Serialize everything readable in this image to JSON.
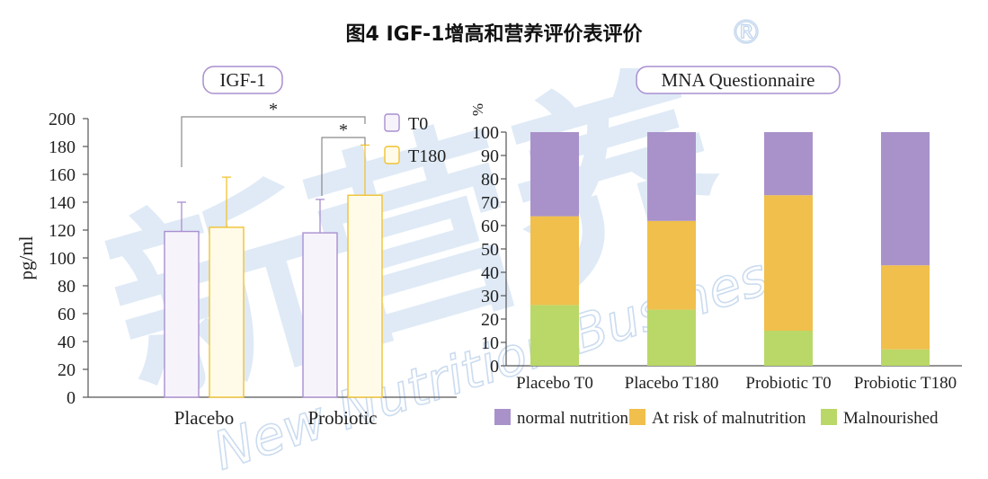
{
  "figure_title": "图4 IGF-1增高和营养评价表评价",
  "watermark": {
    "chinese": "新营养",
    "english": "New Nutrition Business",
    "mark": "®"
  },
  "colors": {
    "t0_stroke": "#a98fd0",
    "t0_fill": "#f7f3fb",
    "t180_stroke": "#f1c232",
    "t180_fill": "#fffbe8",
    "normal": "#a992c9",
    "risk": "#f0bf4c",
    "malnourished": "#b9d867",
    "axis": "#555555",
    "watermark": "#c5d8ee"
  },
  "chart_data": [
    {
      "type": "bar",
      "title": "IGF-1",
      "ylabel": "pg/ml",
      "xlabel": "",
      "ylim": [
        0,
        200
      ],
      "yticks": [
        0,
        20,
        40,
        60,
        80,
        100,
        120,
        140,
        160,
        180,
        200
      ],
      "categories": [
        "Placebo",
        "Probiotic"
      ],
      "series": [
        {
          "name": "T0",
          "values": [
            119,
            118
          ],
          "errors": [
            21,
            24
          ]
        },
        {
          "name": "T180",
          "values": [
            122,
            145
          ],
          "errors": [
            36,
            36
          ]
        }
      ],
      "significance": [
        "*",
        "*"
      ],
      "legend_position": "top-right"
    },
    {
      "type": "bar",
      "stacked": true,
      "title": "MNA Questionnaire",
      "ylabel": "%",
      "xlabel": "",
      "ylim": [
        0,
        100
      ],
      "yticks": [
        0,
        10,
        20,
        30,
        40,
        50,
        60,
        70,
        80,
        90,
        100
      ],
      "categories": [
        "Placebo T0",
        "Placebo T180",
        "Probiotic T0",
        "Probiotic T180"
      ],
      "series": [
        {
          "name": "Malnourished",
          "values": [
            26,
            24,
            15,
            7
          ]
        },
        {
          "name": "At risk of malnutrition",
          "values": [
            38,
            38,
            58,
            36
          ]
        },
        {
          "name": "normal nutrition",
          "values": [
            36,
            38,
            27,
            57
          ]
        }
      ],
      "legend_order": [
        "normal nutrition",
        "At risk of malnutrition",
        "Malnourished"
      ],
      "legend_position": "bottom"
    }
  ]
}
